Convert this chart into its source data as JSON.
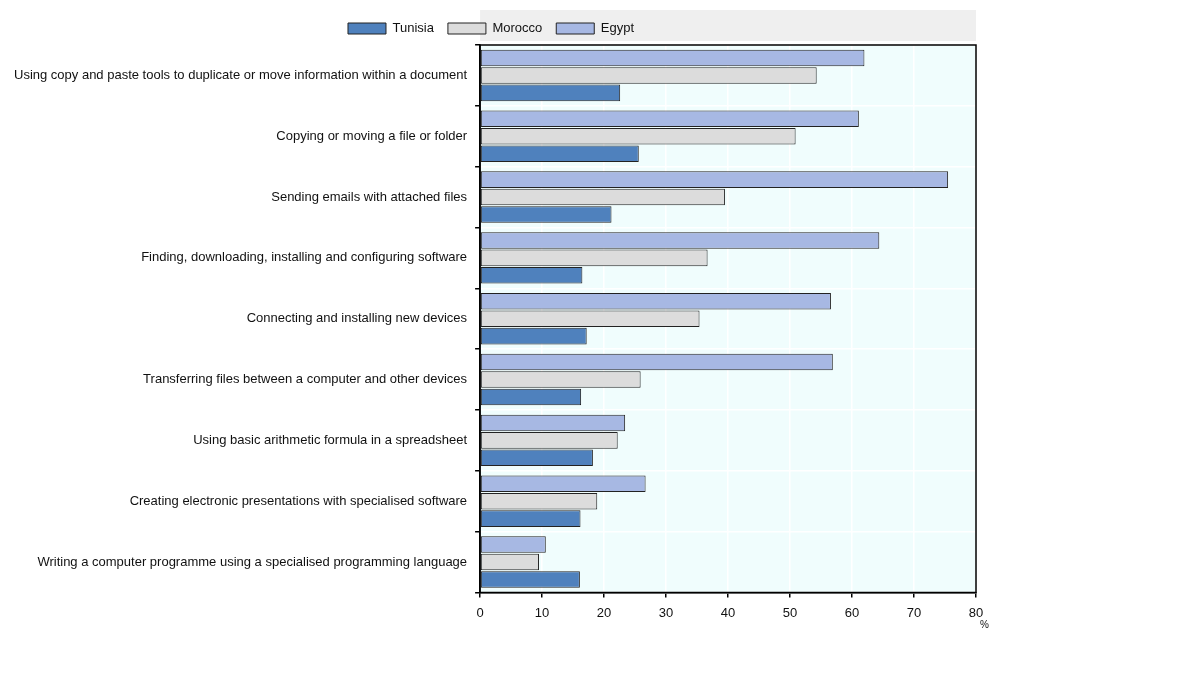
{
  "chart_data": {
    "type": "bar",
    "orientation": "horizontal",
    "xlabel": "%",
    "categories": [
      "Using copy and paste tools to duplicate or move information within a document",
      "Copying or moving a file or folder",
      "Sending emails with attached files",
      "Finding, downloading, installing and configuring software",
      "Connecting and installing new devices",
      "Transferring files between a computer and other devices",
      "Using basic arithmetic formula in a spreadsheet",
      "Creating electronic presentations with specialised software",
      "Writing a computer programme using a specialised programming language"
    ],
    "series": [
      {
        "name": "Tunisia",
        "color": "#4f81bd",
        "values": [
          22.6,
          25.6,
          21.2,
          16.5,
          17.2,
          16.3,
          18.2,
          16.2,
          16.1
        ]
      },
      {
        "name": "Morocco",
        "color": "#dcdcdc",
        "values": [
          54.3,
          50.9,
          39.5,
          36.7,
          35.4,
          25.9,
          22.2,
          18.9,
          9.5
        ]
      },
      {
        "name": "Egypt",
        "color": "#a7b8e3",
        "values": [
          62.0,
          61.1,
          75.5,
          64.4,
          56.6,
          56.9,
          23.4,
          26.7,
          10.6
        ]
      }
    ],
    "xlim": [
      0,
      80
    ],
    "xticks": [
      0,
      10,
      20,
      30,
      40,
      50,
      60,
      70,
      80
    ],
    "grid": true,
    "legend": "top"
  }
}
